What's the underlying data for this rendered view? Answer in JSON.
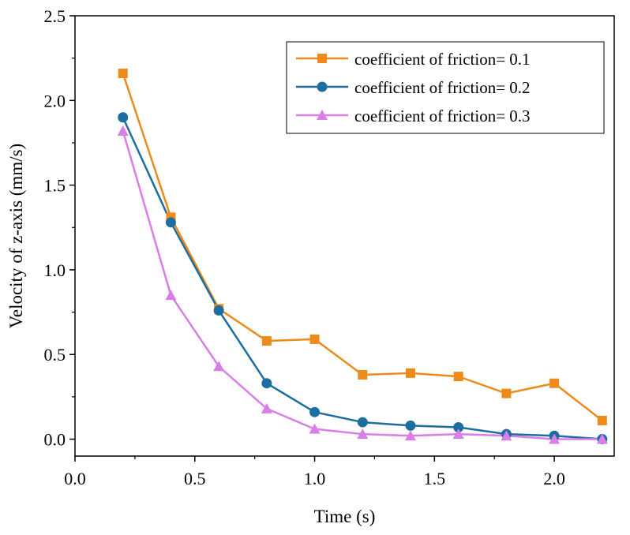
{
  "chart_data": {
    "type": "line",
    "title": "",
    "xlabel": "Time (s)",
    "ylabel": "Velocity of z-axis (mm/s)",
    "xlim": [
      0.0,
      2.25
    ],
    "ylim": [
      -0.1,
      2.5
    ],
    "xticks": [
      0.0,
      0.5,
      1.0,
      1.5,
      2.0
    ],
    "xtick_labels": [
      "0.0",
      "0.5",
      "1.0",
      "1.5",
      "2.0"
    ],
    "yticks": [
      0.0,
      0.5,
      1.0,
      1.5,
      2.0,
      2.5
    ],
    "ytick_labels": [
      "0.0",
      "0.5",
      "1.0",
      "1.5",
      "2.0",
      "2.5"
    ],
    "grid": false,
    "legend_position": "top-right",
    "x": [
      0.2,
      0.4,
      0.6,
      0.8,
      1.0,
      1.2,
      1.4,
      1.6,
      1.8,
      2.0,
      2.2
    ],
    "series": [
      {
        "name": "coefficient of friction= 0.1",
        "marker": "square",
        "color": "#EE8A1A",
        "values": [
          2.16,
          1.31,
          0.77,
          0.58,
          0.59,
          0.38,
          0.39,
          0.37,
          0.27,
          0.33,
          0.11
        ]
      },
      {
        "name": "coefficient of friction= 0.2",
        "marker": "circle",
        "color": "#1C6EA0",
        "values": [
          1.9,
          1.28,
          0.76,
          0.33,
          0.16,
          0.1,
          0.08,
          0.07,
          0.03,
          0.02,
          0.0
        ]
      },
      {
        "name": "coefficient of friction= 0.3",
        "marker": "triangle",
        "color": "#D97EE8",
        "values": [
          1.82,
          0.85,
          0.43,
          0.18,
          0.06,
          0.03,
          0.02,
          0.03,
          0.02,
          0.0,
          0.0
        ]
      }
    ]
  }
}
